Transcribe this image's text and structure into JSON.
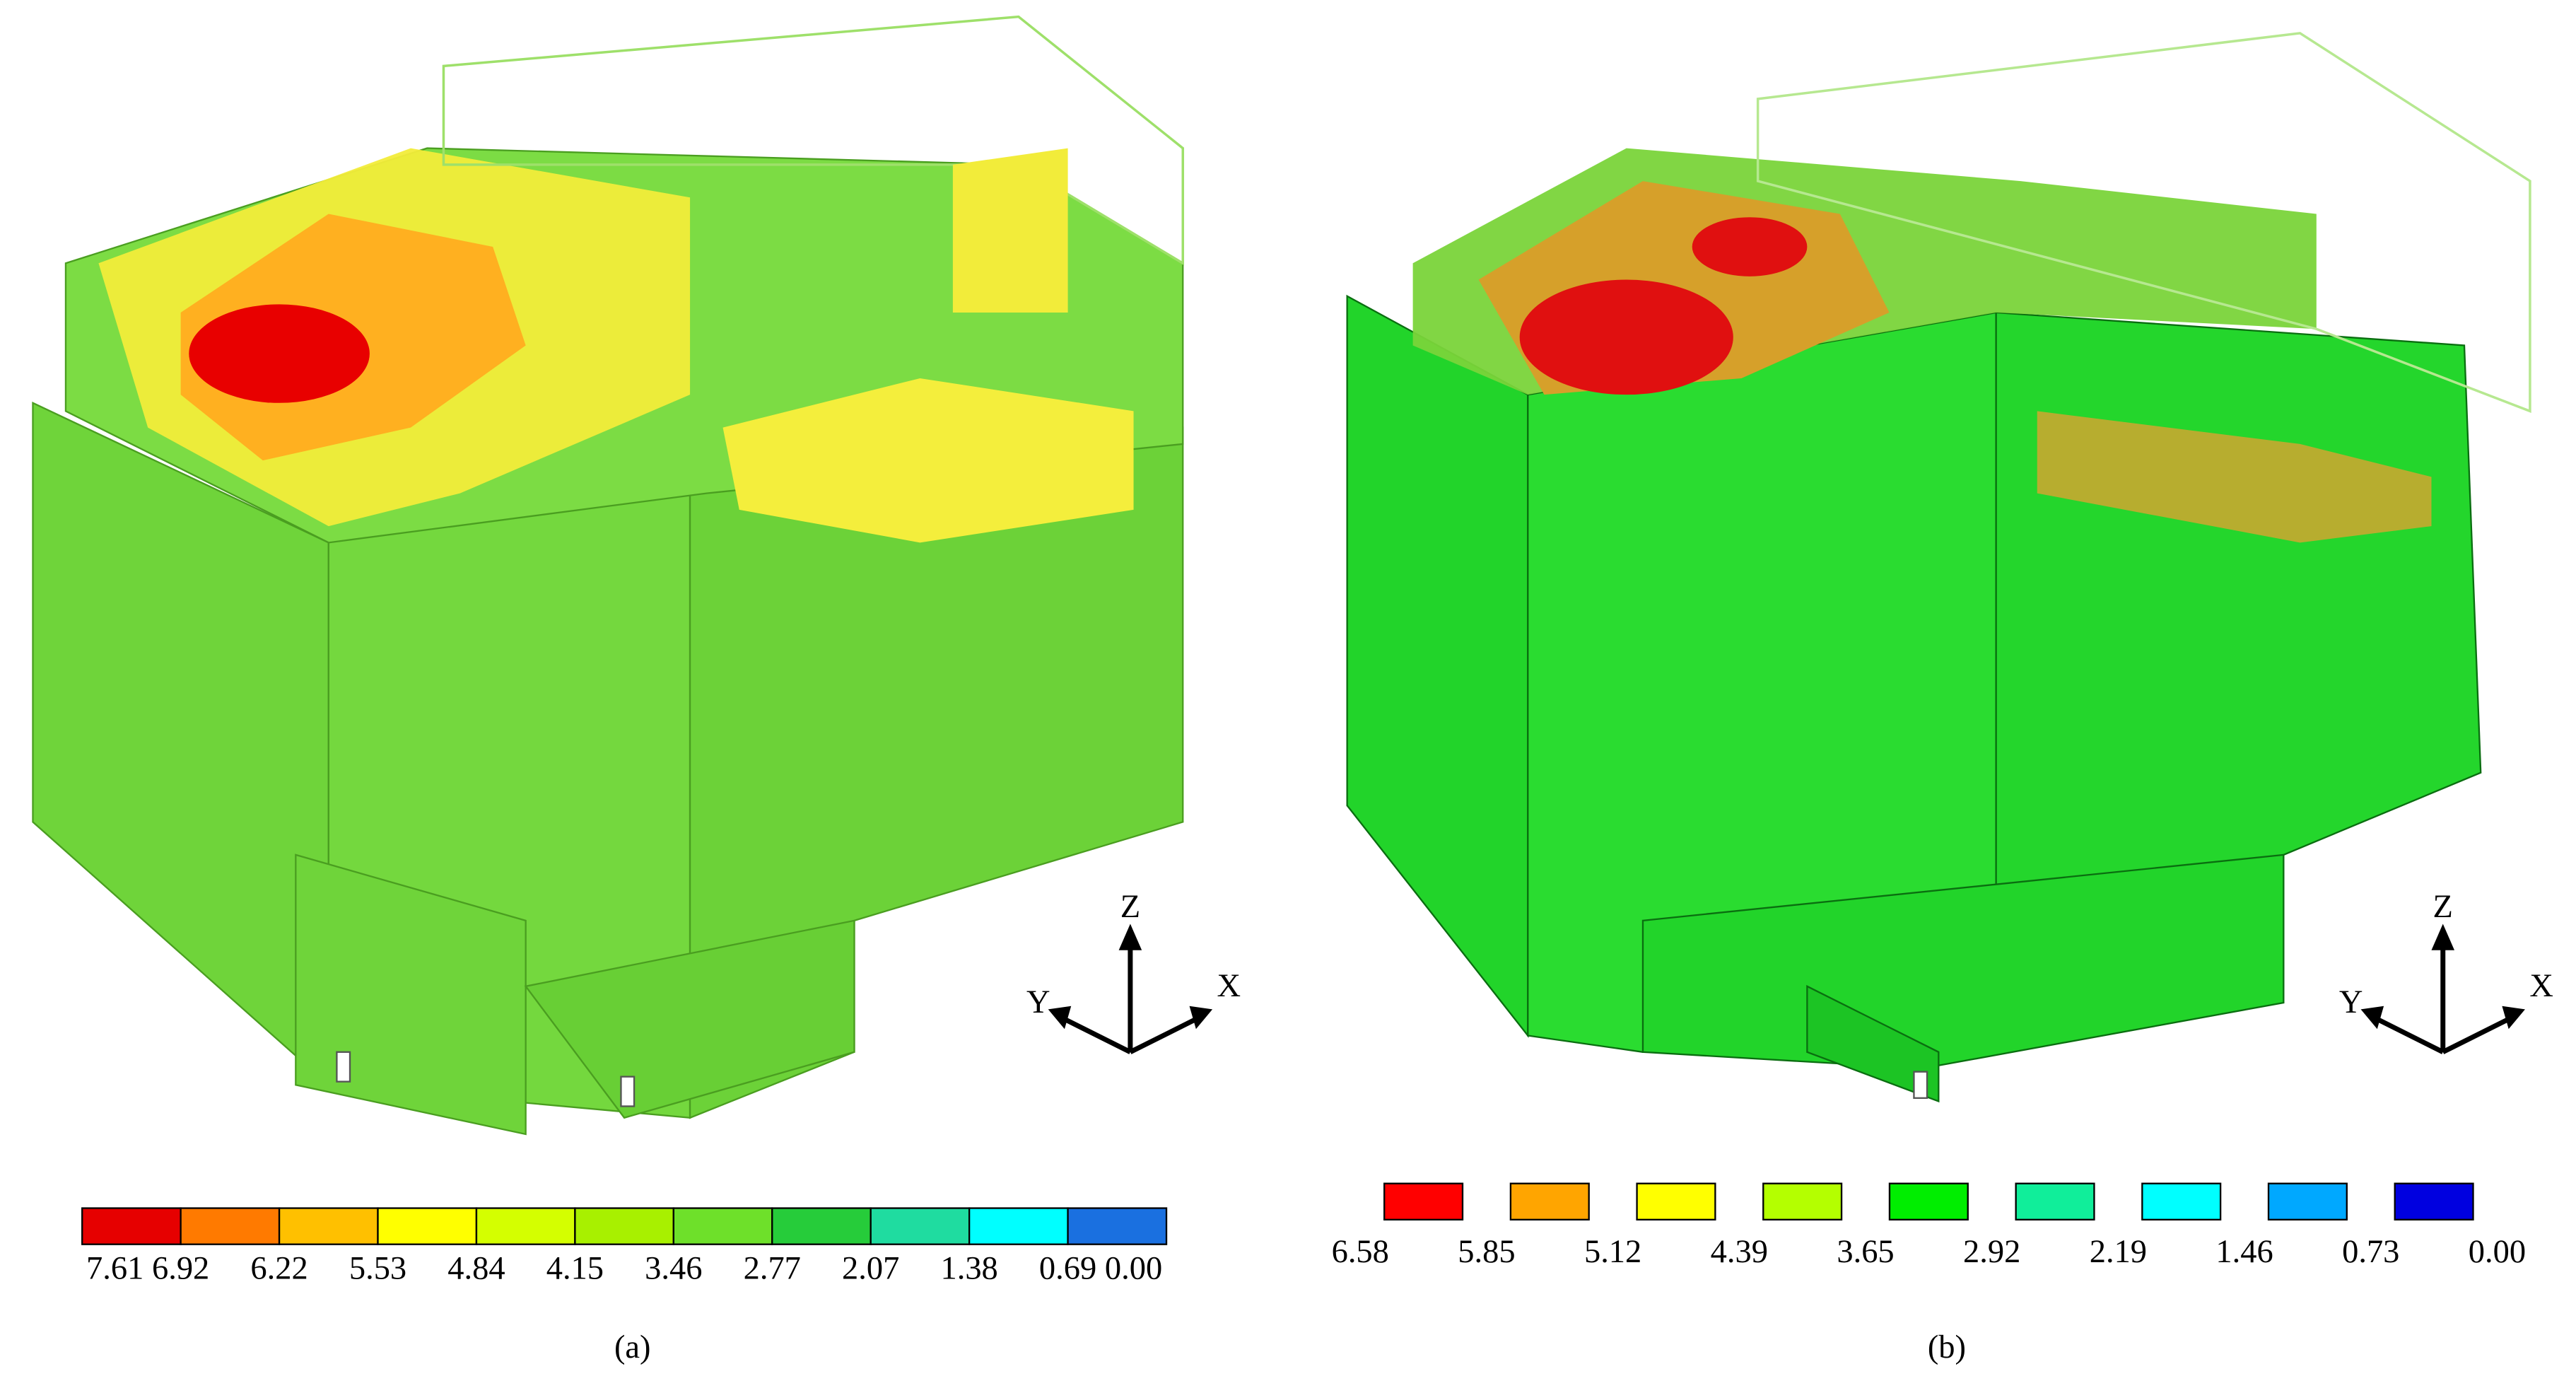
{
  "panels": [
    {
      "caption": "(a)",
      "axes": {
        "z": "Z",
        "y": "Y",
        "x": "X"
      },
      "legend": {
        "layout": "under-edges",
        "labels": [
          "7.61",
          "6.92",
          "6.22",
          "5.53",
          "4.84",
          "4.15",
          "3.46",
          "2.77",
          "2.07",
          "1.38",
          "0.69",
          "0.00"
        ],
        "colors": [
          "#e60000",
          "#ff7a00",
          "#ffc000",
          "#ffff00",
          "#d4ff00",
          "#a8f000",
          "#6ee02a",
          "#26cc3a",
          "#1fdca0",
          "#00ffff",
          "#1a70e0"
        ]
      }
    },
    {
      "caption": "(b)",
      "axes": {
        "z": "Z",
        "y": "Y",
        "x": "X"
      },
      "legend": {
        "layout": "under-gaps",
        "labels": [
          "6.58",
          "5.85",
          "5.12",
          "4.39",
          "3.65",
          "2.92",
          "2.19",
          "1.46",
          "0.73",
          "0.00"
        ],
        "colors": [
          "#ff0000",
          "#ffa500",
          "#ffff00",
          "#b4ff00",
          "#00ee00",
          "#10ee9a",
          "#00ffff",
          "#00a8ff",
          "#0000e0"
        ]
      }
    }
  ]
}
